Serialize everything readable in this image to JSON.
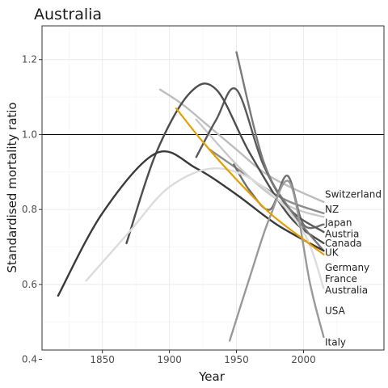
{
  "chart_data": {
    "type": "line",
    "title": "Australia",
    "xlabel": "Year",
    "ylabel": "Standardised mortality ratio",
    "xlim": [
      1805,
      2060
    ],
    "ylim": [
      0.425,
      1.29
    ],
    "x_ticks": [
      1850,
      1900,
      1950,
      2000
    ],
    "y_ticks": [
      0.4,
      0.6,
      0.8,
      1.0,
      1.2
    ],
    "y_tick_labels": [
      "0.4",
      "0.6",
      "0.8",
      "1.0",
      "1.2"
    ],
    "reference_line": 1.0,
    "grid": true,
    "highlight_color": "#E69F00",
    "series": [
      {
        "name": "Switzerland",
        "color": "#bdbdbd",
        "x": [
          1893,
          1910,
          1930,
          1950,
          1970,
          1990,
          2015
        ],
        "y": [
          1.12,
          1.08,
          1.02,
          0.96,
          0.9,
          0.86,
          0.82
        ]
      },
      {
        "name": "NZ",
        "color": "#8c8c8c",
        "x": [
          1930,
          1950,
          1970,
          1990,
          2015
        ],
        "y": [
          0.96,
          0.91,
          0.86,
          0.82,
          0.79
        ]
      },
      {
        "name": "Japan",
        "color": "#c9c9c9",
        "x": [
          1920,
          1950,
          1975,
          1995,
          2015
        ],
        "y": [
          1.04,
          0.92,
          0.84,
          0.8,
          0.78
        ]
      },
      {
        "name": "Austria",
        "color": "#6e6e6e",
        "x": [
          1948,
          1960,
          1975,
          1988,
          2000,
          2015
        ],
        "y": [
          0.92,
          0.85,
          0.8,
          0.89,
          0.76,
          0.76
        ]
      },
      {
        "name": "Canada",
        "color": "#595959",
        "x": [
          1920,
          1935,
          1950,
          1970,
          1990,
          2015
        ],
        "y": [
          0.94,
          1.04,
          1.12,
          0.92,
          0.8,
          0.74
        ]
      },
      {
        "name": "UK",
        "color": "#4d4d4d",
        "x": [
          1868,
          1890,
          1915,
          1935,
          1960,
          1990,
          2015
        ],
        "y": [
          0.71,
          0.95,
          1.11,
          1.12,
          0.95,
          0.78,
          0.71
        ]
      },
      {
        "name": "Germany",
        "color": "#7a7a7a",
        "x": [
          1950,
          1970,
          1990,
          2015
        ],
        "y": [
          1.22,
          0.93,
          0.8,
          0.69
        ]
      },
      {
        "name": "France",
        "color": "#3a3a3a",
        "x": [
          1817,
          1850,
          1890,
          1920,
          1950,
          1980,
          2015
        ],
        "y": [
          0.57,
          0.79,
          0.95,
          0.91,
          0.84,
          0.76,
          0.69
        ]
      },
      {
        "name": "Australia",
        "color": "#E69F00",
        "x": [
          1905,
          1925,
          1950,
          1975,
          2000,
          2015
        ],
        "y": [
          1.07,
          0.98,
          0.88,
          0.79,
          0.72,
          0.68
        ]
      },
      {
        "name": "USA",
        "color": "#dcdcdc",
        "x": [
          1838,
          1870,
          1900,
          1935,
          1970,
          2000,
          2015
        ],
        "y": [
          0.61,
          0.74,
          0.86,
          0.91,
          0.86,
          0.74,
          0.59
        ]
      },
      {
        "name": "Italy",
        "color": "#999999",
        "x": [
          1945,
          1960,
          1975,
          1990,
          2005,
          2015
        ],
        "y": [
          0.45,
          0.62,
          0.78,
          0.87,
          0.6,
          0.46
        ]
      }
    ],
    "labels": [
      {
        "text": "Switzerland",
        "value": 0.84
      },
      {
        "text": "NZ",
        "value": 0.8
      },
      {
        "text": "Japan",
        "value": 0.765
      },
      {
        "text": "Austria",
        "value": 0.735
      },
      {
        "text": "Canada",
        "value": 0.71
      },
      {
        "text": "UK",
        "value": 0.685
      },
      {
        "text": "Germany",
        "value": 0.645
      },
      {
        "text": "France",
        "value": 0.615
      },
      {
        "text": "Australia",
        "value": 0.585
      },
      {
        "text": "USA",
        "value": 0.53
      },
      {
        "text": "Italy",
        "value": 0.445
      }
    ],
    "label_x": 2016
  }
}
